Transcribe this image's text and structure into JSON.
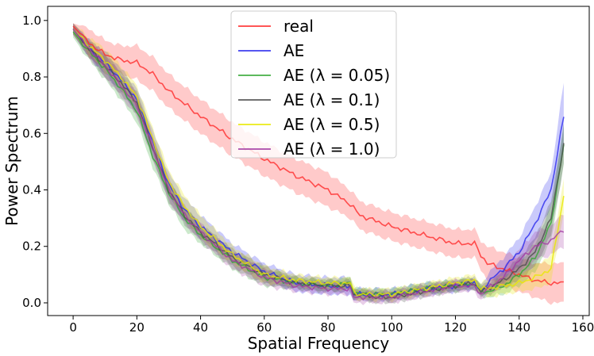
{
  "chart_data": {
    "type": "line",
    "title": "",
    "xlabel": "Spatial Frequency",
    "ylabel": "Power Spectrum",
    "xlim": [
      -8,
      162
    ],
    "ylim": [
      -0.045,
      1.05
    ],
    "xticks": [
      0,
      20,
      40,
      60,
      80,
      100,
      120,
      140,
      160
    ],
    "yticks": [
      0.0,
      0.2,
      0.4,
      0.6,
      0.8,
      1.0
    ],
    "xtick_labels": [
      "0",
      "20",
      "40",
      "60",
      "80",
      "100",
      "120",
      "140",
      "160"
    ],
    "ytick_labels": [
      "0.0",
      "0.2",
      "0.4",
      "0.6",
      "0.8",
      "1.0"
    ],
    "grid": false,
    "legend_position": "top-center",
    "series": [
      {
        "name": "real",
        "color": "#ff2a2a",
        "x": [
          0,
          5,
          10,
          15,
          20,
          25,
          30,
          40,
          50,
          60,
          70,
          80,
          87,
          90,
          100,
          110,
          120,
          126,
          128,
          130,
          135,
          140,
          145,
          150,
          154
        ],
        "y": [
          0.98,
          0.92,
          0.88,
          0.86,
          0.85,
          0.81,
          0.75,
          0.66,
          0.58,
          0.51,
          0.45,
          0.4,
          0.35,
          0.31,
          0.27,
          0.24,
          0.21,
          0.21,
          0.17,
          0.14,
          0.12,
          0.1,
          0.08,
          0.07,
          0.07
        ],
        "band": [
          0.01,
          0.05,
          0.05,
          0.05,
          0.06,
          0.06,
          0.06,
          0.06,
          0.06,
          0.06,
          0.06,
          0.06,
          0.05,
          0.05,
          0.05,
          0.05,
          0.05,
          0.05,
          0.05,
          0.06,
          0.06,
          0.06,
          0.06,
          0.07,
          0.07
        ]
      },
      {
        "name": "AE",
        "color": "#2a2aee",
        "x": [
          0,
          5,
          10,
          15,
          20,
          25,
          30,
          35,
          40,
          50,
          60,
          70,
          80,
          87,
          88,
          90,
          95,
          100,
          110,
          120,
          126,
          128,
          130,
          135,
          140,
          145,
          150,
          154
        ],
        "y": [
          0.97,
          0.9,
          0.85,
          0.79,
          0.72,
          0.57,
          0.42,
          0.33,
          0.27,
          0.18,
          0.11,
          0.07,
          0.06,
          0.06,
          0.03,
          0.03,
          0.03,
          0.03,
          0.05,
          0.06,
          0.07,
          0.04,
          0.07,
          0.12,
          0.18,
          0.28,
          0.4,
          0.66
        ],
        "band": [
          0.02,
          0.03,
          0.04,
          0.04,
          0.04,
          0.04,
          0.04,
          0.04,
          0.04,
          0.03,
          0.03,
          0.03,
          0.03,
          0.03,
          0.02,
          0.02,
          0.02,
          0.02,
          0.02,
          0.02,
          0.02,
          0.02,
          0.03,
          0.04,
          0.05,
          0.06,
          0.06,
          0.12
        ]
      },
      {
        "name": "AE (λ = 0.05)",
        "color": "#33a833",
        "x": [
          0,
          5,
          10,
          15,
          20,
          25,
          30,
          35,
          40,
          50,
          60,
          70,
          80,
          87,
          88,
          90,
          95,
          100,
          110,
          120,
          126,
          128,
          130,
          135,
          140,
          145,
          150,
          154
        ],
        "y": [
          0.96,
          0.89,
          0.83,
          0.76,
          0.68,
          0.52,
          0.39,
          0.3,
          0.24,
          0.15,
          0.09,
          0.07,
          0.06,
          0.07,
          0.04,
          0.03,
          0.03,
          0.03,
          0.05,
          0.06,
          0.07,
          0.04,
          0.04,
          0.06,
          0.1,
          0.16,
          0.28,
          0.56
        ],
        "band": [
          0.02,
          0.03,
          0.04,
          0.04,
          0.04,
          0.04,
          0.04,
          0.04,
          0.03,
          0.03,
          0.03,
          0.02,
          0.02,
          0.02,
          0.02,
          0.02,
          0.02,
          0.02,
          0.02,
          0.02,
          0.02,
          0.02,
          0.02,
          0.03,
          0.04,
          0.05,
          0.06,
          0.07
        ]
      },
      {
        "name": "AE (λ = 0.1)",
        "color": "#4d4d4d",
        "x": [
          0,
          5,
          10,
          15,
          20,
          25,
          30,
          35,
          40,
          50,
          60,
          70,
          80,
          87,
          88,
          90,
          95,
          100,
          110,
          120,
          126,
          128,
          130,
          135,
          140,
          145,
          150,
          154
        ],
        "y": [
          0.97,
          0.9,
          0.84,
          0.78,
          0.71,
          0.55,
          0.4,
          0.31,
          0.25,
          0.16,
          0.1,
          0.07,
          0.06,
          0.06,
          0.03,
          0.03,
          0.02,
          0.02,
          0.04,
          0.06,
          0.07,
          0.04,
          0.05,
          0.08,
          0.12,
          0.18,
          0.3,
          0.56
        ],
        "band": [
          0.02,
          0.03,
          0.04,
          0.04,
          0.04,
          0.04,
          0.04,
          0.03,
          0.03,
          0.03,
          0.03,
          0.02,
          0.02,
          0.02,
          0.02,
          0.02,
          0.02,
          0.02,
          0.02,
          0.02,
          0.02,
          0.02,
          0.02,
          0.03,
          0.04,
          0.05,
          0.06,
          0.07
        ]
      },
      {
        "name": "AE (λ = 0.5)",
        "color": "#e8e800",
        "x": [
          0,
          5,
          10,
          15,
          20,
          25,
          30,
          35,
          40,
          50,
          60,
          70,
          80,
          87,
          88,
          90,
          95,
          100,
          110,
          120,
          126,
          128,
          130,
          135,
          140,
          145,
          150,
          154
        ],
        "y": [
          0.97,
          0.91,
          0.86,
          0.8,
          0.73,
          0.58,
          0.43,
          0.34,
          0.27,
          0.17,
          0.1,
          0.08,
          0.07,
          0.07,
          0.04,
          0.03,
          0.03,
          0.03,
          0.05,
          0.07,
          0.08,
          0.05,
          0.05,
          0.06,
          0.07,
          0.09,
          0.12,
          0.38
        ],
        "band": [
          0.02,
          0.03,
          0.04,
          0.04,
          0.04,
          0.04,
          0.04,
          0.04,
          0.04,
          0.03,
          0.03,
          0.02,
          0.02,
          0.02,
          0.02,
          0.02,
          0.02,
          0.02,
          0.02,
          0.02,
          0.02,
          0.02,
          0.03,
          0.03,
          0.03,
          0.04,
          0.05,
          0.06
        ]
      },
      {
        "name": "AE (λ = 1.0)",
        "color": "#a33aa3",
        "x": [
          0,
          5,
          10,
          15,
          20,
          25,
          30,
          35,
          40,
          50,
          60,
          70,
          80,
          87,
          88,
          90,
          95,
          100,
          110,
          120,
          126,
          128,
          130,
          135,
          140,
          145,
          150,
          154
        ],
        "y": [
          0.97,
          0.9,
          0.84,
          0.77,
          0.7,
          0.55,
          0.4,
          0.31,
          0.25,
          0.15,
          0.09,
          0.06,
          0.05,
          0.05,
          0.02,
          0.02,
          0.02,
          0.02,
          0.04,
          0.06,
          0.06,
          0.03,
          0.05,
          0.09,
          0.15,
          0.2,
          0.22,
          0.26
        ],
        "band": [
          0.02,
          0.03,
          0.04,
          0.04,
          0.04,
          0.04,
          0.04,
          0.03,
          0.03,
          0.03,
          0.03,
          0.02,
          0.02,
          0.02,
          0.02,
          0.02,
          0.02,
          0.02,
          0.02,
          0.02,
          0.02,
          0.02,
          0.02,
          0.03,
          0.04,
          0.05,
          0.05,
          0.06
        ]
      }
    ]
  }
}
